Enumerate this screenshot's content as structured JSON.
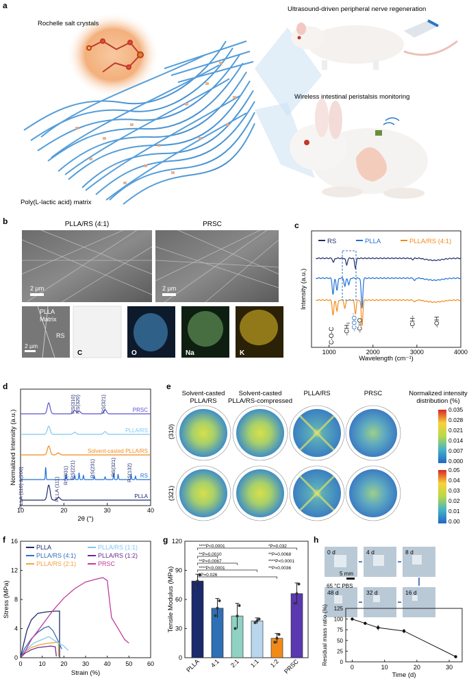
{
  "panel_labels": {
    "a": "a",
    "b": "b",
    "c": "c",
    "d": "d",
    "e": "e",
    "f": "f",
    "g": "g",
    "h": "h"
  },
  "panel_a": {
    "crystals": "Rochelle salt crystals",
    "matrix": "Poly(L-lactic acid) matrix",
    "nerve": "Ultrasound-driven peripheral nerve regeneration",
    "peristalsis": "Wireless intestinal peristalsis monitoring"
  },
  "panel_b": {
    "title_left": "PLLA/RS (4:1)",
    "title_right": "PRSC",
    "scale": "2 µm",
    "scale2": "2 µm",
    "scale3": "2 µm",
    "annot_pll": "PLLA",
    "annot_matrix": "Matrix",
    "annot_rs": "RS",
    "eds": [
      "C",
      "O",
      "Na",
      "K"
    ],
    "colors": {
      "C": "#c8c8c8",
      "O": "#4a9bd6",
      "Na": "#8fcf7a",
      "K": "#e6c229"
    }
  },
  "panel_c": {
    "chart_data": {
      "type": "line",
      "xlabel": "Wavelength (cm⁻¹)",
      "ylabel": "Intensity (a.u.)",
      "xlim": [
        600,
        4000
      ],
      "xticks": [
        "1000",
        "2000",
        "3000",
        "4000"
      ],
      "series": [
        {
          "name": "RS",
          "color": "#1b2a6b"
        },
        {
          "name": "PLLA",
          "color": "#1f6fd6"
        },
        {
          "name": "PLLA/RS (4:1)",
          "color": "#f28a18"
        }
      ],
      "annotations": [
        "C-O-C",
        "-CH₃",
        "-COO⁻",
        "-C=O",
        "-CH-",
        "-OH"
      ]
    }
  },
  "panel_d": {
    "chart_data": {
      "type": "line",
      "xlabel": "2θ (°)",
      "ylabel": "Normalized Intensity (a.u.)",
      "xlim": [
        10,
        40
      ],
      "xticks": [
        "10",
        "20",
        "30",
        "40"
      ],
      "series": [
        {
          "name": "PRSC",
          "color": "#5a4fcf"
        },
        {
          "name": "PLLA/RS",
          "color": "#7ec8f0"
        },
        {
          "name": "Solvent-casted PLLA/RS",
          "color": "#f28a18"
        },
        {
          "name": "RS",
          "color": "#1f6fd6"
        },
        {
          "name": "PLLA",
          "color": "#1b2a6b"
        }
      ],
      "peak_labels": [
        "RS(310)",
        "RS(320)",
        "RS(321)",
        "RS(031)",
        "RS(221)",
        "RS(231)",
        "RS(321)",
        "RS(132)",
        "PLLA (110) &(200)",
        "PLLA (111)"
      ]
    }
  },
  "panel_e": {
    "col_titles": [
      "Solvent-casted PLLA/RS",
      "Solvent-casted PLLA/RS-compressed",
      "PLLA/RS",
      "PRSC"
    ],
    "legend_title": "Normalized intensity distribution (%)",
    "rows": [
      "(310)",
      "(321)"
    ],
    "cbar1": [
      "0.035",
      "0.028",
      "0.021",
      "0.014",
      "0.007",
      "0.000"
    ],
    "cbar2": [
      "0.05",
      "0.04",
      "0.03",
      "0.02",
      "0.01",
      "0.00"
    ]
  },
  "panel_f": {
    "chart_data": {
      "type": "line",
      "xlabel": "Strain (%)",
      "ylabel": "Stress (MPa)",
      "xlim": [
        0,
        60
      ],
      "ylim": [
        0,
        16
      ],
      "xticks": [
        "0",
        "10",
        "20",
        "30",
        "40",
        "50",
        "60"
      ],
      "yticks": [
        "0",
        "4",
        "8",
        "12",
        "16"
      ],
      "series": [
        {
          "name": "PLLA",
          "color": "#1b2a6b",
          "points": [
            [
              0,
              0
            ],
            [
              1.5,
              2
            ],
            [
              3,
              3.8
            ],
            [
              5,
              5.2
            ],
            [
              8,
              6.1
            ],
            [
              12,
              6.3
            ],
            [
              16,
              6.4
            ],
            [
              18,
              6.4
            ],
            [
              18,
              0
            ]
          ]
        },
        {
          "name": "PLLA/RS (4:1)",
          "color": "#2f6fb6",
          "points": [
            [
              0,
              0
            ],
            [
              2,
              1.3
            ],
            [
              5,
              2.6
            ],
            [
              8,
              3.5
            ],
            [
              11,
              4.1
            ],
            [
              13,
              4.3
            ],
            [
              15,
              3.7
            ],
            [
              17,
              2.5
            ],
            [
              19,
              1.2
            ]
          ]
        },
        {
          "name": "PLLA/RS (2:1)",
          "color": "#f2a33a",
          "points": [
            [
              0,
              0
            ],
            [
              2,
              0.8
            ],
            [
              5,
              1.4
            ],
            [
              9,
              1.8
            ],
            [
              13,
              2.0
            ],
            [
              16,
              2.1
            ],
            [
              17.5,
              2.1
            ],
            [
              17.5,
              0.2
            ]
          ]
        },
        {
          "name": "PLLA/RS (1:1)",
          "color": "#7ec8f0",
          "points": [
            [
              0,
              0
            ],
            [
              3,
              1.2
            ],
            [
              6,
              2.0
            ],
            [
              10,
              2.5
            ],
            [
              13,
              2.9
            ],
            [
              16,
              2.3
            ],
            [
              20,
              1.6
            ],
            [
              22,
              1.0
            ]
          ]
        },
        {
          "name": "PLLA/RS (1:2)",
          "color": "#6a2a8a",
          "points": [
            [
              0,
              0
            ],
            [
              2,
              0.6
            ],
            [
              5,
              1.1
            ],
            [
              8,
              1.4
            ],
            [
              11,
              1.5
            ],
            [
              14,
              1.6
            ],
            [
              16,
              1.5
            ],
            [
              16.5,
              0.2
            ]
          ]
        },
        {
          "name": "PRSC",
          "color": "#c03a9e",
          "points": [
            [
              0,
              0
            ],
            [
              2,
              0.8
            ],
            [
              5,
              2.5
            ],
            [
              10,
              4.5
            ],
            [
              15,
              6.5
            ],
            [
              20,
              8.2
            ],
            [
              25,
              9.5
            ],
            [
              30,
              10.4
            ],
            [
              35,
              10.8
            ],
            [
              38,
              11.0
            ],
            [
              40,
              10.6
            ],
            [
              41,
              8.0
            ],
            [
              42,
              5.5
            ],
            [
              44,
              4.5
            ],
            [
              46,
              3.5
            ],
            [
              48,
              2.5
            ],
            [
              50,
              2.0
            ]
          ]
        }
      ]
    }
  },
  "panel_g": {
    "chart_data": {
      "type": "bar",
      "ylabel": "Tensile Modulus (MPa)",
      "categories": [
        "PLLA",
        "4:1",
        "2:1",
        "1:1",
        "1:2",
        "PRSC"
      ],
      "values": [
        79,
        51,
        43,
        38,
        20,
        66
      ],
      "errors": [
        7,
        10,
        13,
        3,
        5,
        11
      ],
      "colors": [
        "#1b2a6b",
        "#2f6fb6",
        "#8fd1c2",
        "#b8d6ee",
        "#f28a18",
        "#5a38b0"
      ],
      "ylim": [
        0,
        120
      ],
      "yticks": [
        "0",
        "30",
        "60",
        "90",
        "120"
      ]
    },
    "sig": [
      "****P<0.0001",
      "*P=0.032",
      "**P=0.0010",
      "**P=0.0068",
      "**P=0.0067",
      "****P<0.0001",
      "****P<0.0001",
      "**P=0.0036",
      "*P=0.026"
    ]
  },
  "panel_h": {
    "tiles": [
      "0 d",
      "4 d",
      "8 d",
      "48 d",
      "32 d",
      "16 d"
    ],
    "scale": "5 mm",
    "cond": "65 °C PBS",
    "chart_data": {
      "type": "line",
      "xlabel": "Time (d)",
      "ylabel": "Residual mass ratio (%)",
      "x": [
        0,
        4,
        8,
        16,
        32
      ],
      "values": [
        100,
        90,
        80,
        72,
        12
      ],
      "errors": [
        2,
        2,
        6,
        5,
        1
      ],
      "xlim": [
        -2,
        34
      ],
      "ylim": [
        0,
        125
      ],
      "xticks": [
        "0",
        "10",
        "20",
        "30"
      ],
      "yticks": [
        "0",
        "25",
        "50",
        "75",
        "100",
        "125"
      ]
    }
  }
}
